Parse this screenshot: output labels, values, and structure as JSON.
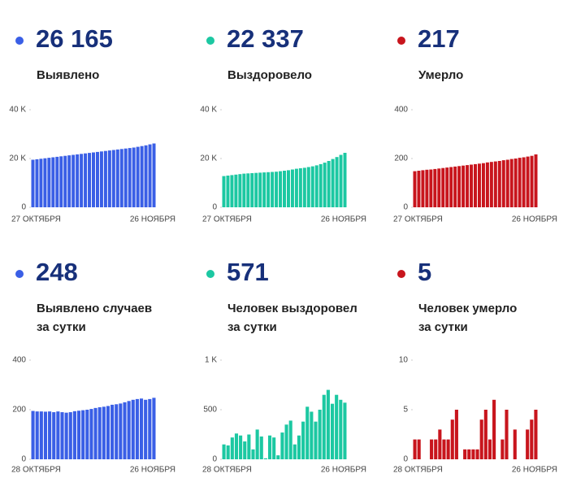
{
  "chart_data": [
    {
      "type": "bar",
      "headline": "26 165",
      "title": [
        "Выявлено"
      ],
      "color": "#3a5fe6",
      "categories": [
        "27 ОКТЯБРЯ",
        null,
        null,
        null,
        null,
        null,
        null,
        null,
        null,
        null,
        null,
        null,
        null,
        null,
        null,
        null,
        null,
        null,
        null,
        null,
        null,
        null,
        null,
        null,
        null,
        null,
        null,
        null,
        null,
        null,
        "26 НОЯБРЯ"
      ],
      "values": [
        19500,
        19700,
        19900,
        20100,
        20300,
        20500,
        20700,
        20900,
        21100,
        21300,
        21500,
        21700,
        21900,
        22100,
        22300,
        22500,
        22700,
        22900,
        23100,
        23300,
        23500,
        23700,
        23900,
        24100,
        24300,
        24500,
        24800,
        25100,
        25400,
        25800,
        26165
      ],
      "ylim": [
        0,
        40000
      ],
      "yticks": [
        0,
        {
          "value": 20000,
          "label": "20 K"
        },
        {
          "value": 40000,
          "label": "40 K"
        }
      ]
    },
    {
      "type": "bar",
      "headline": "22 337",
      "title": [
        "Выздоровело"
      ],
      "color": "#1cc8a2",
      "categories": [
        "27 ОКТЯБРЯ",
        null,
        null,
        null,
        null,
        null,
        null,
        null,
        null,
        null,
        null,
        null,
        null,
        null,
        null,
        null,
        null,
        null,
        null,
        null,
        null,
        null,
        null,
        null,
        null,
        null,
        null,
        null,
        null,
        null,
        "26 НОЯБРЯ"
      ],
      "values": [
        12800,
        13000,
        13200,
        13400,
        13600,
        13800,
        13900,
        14000,
        14100,
        14200,
        14300,
        14400,
        14500,
        14600,
        14800,
        15000,
        15200,
        15500,
        15800,
        16000,
        16200,
        16500,
        16800,
        17200,
        17700,
        18300,
        19000,
        19800,
        20600,
        21500,
        22337
      ],
      "ylim": [
        0,
        40000
      ],
      "yticks": [
        0,
        {
          "value": 20000,
          "label": "20 K"
        },
        {
          "value": 40000,
          "label": "40 K"
        }
      ]
    },
    {
      "type": "bar",
      "headline": "217",
      "title": [
        "Умерло"
      ],
      "color": "#c8151d",
      "categories": [
        "27 ОКТЯБРЯ",
        null,
        null,
        null,
        null,
        null,
        null,
        null,
        null,
        null,
        null,
        null,
        null,
        null,
        null,
        null,
        null,
        null,
        null,
        null,
        null,
        null,
        null,
        null,
        null,
        null,
        null,
        null,
        null,
        null,
        "26 НОЯБРЯ"
      ],
      "values": [
        148,
        150,
        152,
        154,
        155,
        157,
        159,
        161,
        163,
        165,
        167,
        169,
        171,
        173,
        175,
        177,
        179,
        181,
        184,
        186,
        188,
        190,
        193,
        195,
        198,
        200,
        203,
        205,
        208,
        211,
        217
      ],
      "ylim": [
        0,
        400
      ],
      "yticks": [
        0,
        200,
        400
      ]
    },
    {
      "type": "bar",
      "headline": "248",
      "title": [
        "Выявлено случаев",
        "за сутки"
      ],
      "color": "#3a5fe6",
      "categories": [
        "28 ОКТЯБРЯ",
        null,
        null,
        null,
        null,
        null,
        null,
        null,
        null,
        null,
        null,
        null,
        null,
        null,
        null,
        null,
        null,
        null,
        null,
        null,
        null,
        null,
        null,
        null,
        null,
        null,
        null,
        null,
        null,
        "26 НОЯБРЯ"
      ],
      "values": [
        195,
        193,
        193,
        192,
        193,
        190,
        193,
        190,
        188,
        190,
        194,
        196,
        198,
        200,
        203,
        207,
        210,
        212,
        215,
        220,
        222,
        225,
        230,
        235,
        240,
        243,
        245,
        240,
        243,
        248
      ],
      "ylim": [
        0,
        400
      ],
      "yticks": [
        0,
        200,
        400
      ]
    },
    {
      "type": "bar",
      "headline": "571",
      "title": [
        "Человек выздоровел",
        "за сутки"
      ],
      "color": "#1cc8a2",
      "categories": [
        "28 ОКТЯБРЯ",
        null,
        null,
        null,
        null,
        null,
        null,
        null,
        null,
        null,
        null,
        null,
        null,
        null,
        null,
        null,
        null,
        null,
        null,
        null,
        null,
        null,
        null,
        null,
        null,
        null,
        null,
        null,
        null,
        "26 НОЯБРЯ"
      ],
      "values": [
        150,
        140,
        220,
        260,
        240,
        180,
        250,
        100,
        300,
        230,
        10,
        240,
        220,
        40,
        270,
        350,
        390,
        150,
        240,
        380,
        530,
        480,
        380,
        500,
        650,
        700,
        560,
        650,
        600,
        571
      ],
      "ylim": [
        0,
        1000
      ],
      "yticks": [
        0,
        500,
        {
          "value": 1000,
          "label": "1 K"
        }
      ]
    },
    {
      "type": "bar",
      "headline": "5",
      "title": [
        "Человек умерло",
        "за сутки"
      ],
      "color": "#c8151d",
      "categories": [
        "28 ОКТЯБРЯ",
        null,
        null,
        null,
        null,
        null,
        null,
        null,
        null,
        null,
        null,
        null,
        null,
        null,
        null,
        null,
        null,
        null,
        null,
        null,
        null,
        null,
        null,
        null,
        null,
        null,
        null,
        null,
        null,
        "26 НОЯБРЯ"
      ],
      "values": [
        2,
        2,
        0,
        0,
        2,
        2,
        3,
        2,
        2,
        4,
        5,
        0,
        1,
        1,
        1,
        1,
        4,
        5,
        2,
        6,
        0,
        2,
        5,
        0,
        3,
        0,
        0,
        3,
        4,
        5
      ],
      "ylim": [
        0,
        10
      ],
      "yticks": [
        0,
        5,
        10
      ]
    }
  ]
}
